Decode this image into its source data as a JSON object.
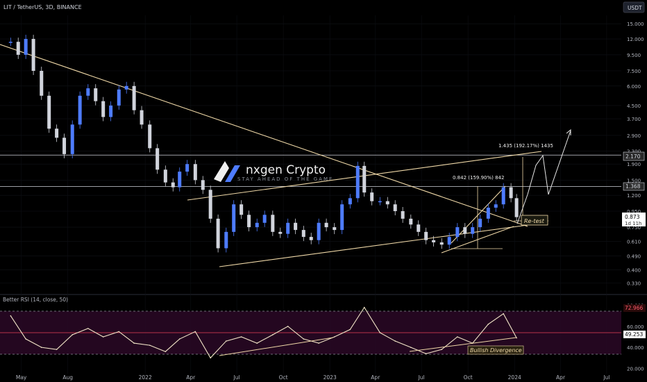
{
  "header": {
    "symbol": "LIT / TetherUS, 3D, BINANCE",
    "currency_button": "USDT"
  },
  "logo": {
    "name": "nxgen Crypto",
    "tagline": "STAY AHEAD OF THE GAME"
  },
  "annotations": {
    "target1": "0.842 (159.90%) 842",
    "target2": "1.435 (192.17%) 1435",
    "retest": "Re-test",
    "divergence": "Bullish Divergence"
  },
  "price_badges": {
    "level_high": "2.170",
    "level_mid": "1.368",
    "current": "0.873",
    "countdown": "1d 11h"
  },
  "rsi": {
    "label": "Better RSI (14, close, 50)",
    "last_value": "72.966",
    "current_value": "49.253"
  },
  "colors": {
    "background": "#000000",
    "candle_up": "#4e7cff",
    "candle_down": "#d1d4dc",
    "trendline": "#f0d9a8",
    "rsi_line": "#f3e6c8",
    "rsi_fill": "#3a0a35",
    "ob_line": "#b8334a"
  },
  "chart_data": [
    {
      "type": "line",
      "title": "LIT / TetherUS, 3D, BINANCE",
      "y_scale": "log",
      "y_ticks": [
        "15.000",
        "12.000",
        "9.500",
        "7.500",
        "6.000",
        "4.500",
        "3.700",
        "2.900",
        "2.300",
        "1.900",
        "1.500",
        "1.200",
        "0.950",
        "0.750",
        "0.610",
        "0.490",
        "0.400",
        "0.330"
      ],
      "x_ticks": [
        "May",
        "Aug",
        "2022",
        "Apr",
        "Jul",
        "Oct",
        "2023",
        "Apr",
        "Jul",
        "Oct",
        "2024",
        "Apr",
        "Jul"
      ],
      "ylim": [
        0.29,
        17
      ],
      "horizontal_levels": [
        2.17,
        1.368
      ],
      "series": [
        {
          "x": [
            "2021-04-10",
            "2021-04-25",
            "2021-05-10",
            "2021-05-25",
            "2021-06-10",
            "2021-06-25",
            "2021-07-10",
            "2021-07-25",
            "2021-08-10",
            "2021-08-25",
            "2021-09-10",
            "2021-09-25",
            "2021-10-10",
            "2021-10-25",
            "2021-11-10",
            "2021-11-25",
            "2021-12-10",
            "2021-12-25",
            "2022-01-10",
            "2022-01-25",
            "2022-02-10",
            "2022-02-25",
            "2022-03-10",
            "2022-03-25",
            "2022-04-10",
            "2022-04-25",
            "2022-05-10",
            "2022-05-25",
            "2022-06-10",
            "2022-06-25",
            "2022-07-10",
            "2022-07-25",
            "2022-08-10",
            "2022-08-25",
            "2022-09-10",
            "2022-09-25",
            "2022-10-10",
            "2022-10-25",
            "2022-11-10",
            "2022-11-25",
            "2022-12-10",
            "2022-12-25",
            "2023-01-10",
            "2023-01-25",
            "2023-02-10",
            "2023-02-25",
            "2023-03-10",
            "2023-03-25",
            "2023-04-10",
            "2023-04-25",
            "2023-05-10",
            "2023-05-25",
            "2023-06-10",
            "2023-06-25",
            "2023-07-10",
            "2023-07-25",
            "2023-08-10",
            "2023-08-25",
            "2023-09-10",
            "2023-09-25",
            "2023-10-10",
            "2023-10-25",
            "2023-11-10",
            "2023-11-25",
            "2023-12-10",
            "2023-12-25",
            "2024-01-05"
          ],
          "y": [
            11.5,
            9.5,
            12,
            7.5,
            5.2,
            3.2,
            2.8,
            2.2,
            3.4,
            5.2,
            5.8,
            4.8,
            3.8,
            4.5,
            5.7,
            6.0,
            4.2,
            3.4,
            2.4,
            1.75,
            1.45,
            1.35,
            1.7,
            1.9,
            1.5,
            1.3,
            0.85,
            0.55,
            0.7,
            1.05,
            0.9,
            0.75,
            0.8,
            0.9,
            0.7,
            0.68,
            0.8,
            0.72,
            0.65,
            0.62,
            0.8,
            0.75,
            0.72,
            1.05,
            1.15,
            1.85,
            1.25,
            1.1,
            1.1,
            1.05,
            0.95,
            0.85,
            0.78,
            0.7,
            0.62,
            0.6,
            0.58,
            0.65,
            0.75,
            0.68,
            0.75,
            0.85,
            1.0,
            1.05,
            1.35,
            1.15,
            0.87
          ]
        }
      ]
    },
    {
      "type": "line",
      "title": "Better RSI (14, close, 50)",
      "y_ticks": [
        "80.000",
        "60.000",
        "40.000",
        "20.000"
      ],
      "ylim": [
        15,
        85
      ],
      "series": [
        {
          "x": [
            "2021-04-10",
            "2021-05-10",
            "2021-06-10",
            "2021-07-10",
            "2021-08-10",
            "2021-09-10",
            "2021-10-10",
            "2021-11-10",
            "2021-12-10",
            "2022-01-10",
            "2022-02-10",
            "2022-03-10",
            "2022-04-10",
            "2022-05-10",
            "2022-06-10",
            "2022-07-10",
            "2022-08-10",
            "2022-09-10",
            "2022-10-10",
            "2022-11-10",
            "2022-12-10",
            "2023-01-10",
            "2023-02-10",
            "2023-03-10",
            "2023-04-10",
            "2023-05-10",
            "2023-06-10",
            "2023-07-10",
            "2023-08-10",
            "2023-09-10",
            "2023-10-10",
            "2023-11-10",
            "2023-12-10",
            "2024-01-05"
          ],
          "y": [
            70,
            48,
            40,
            38,
            52,
            58,
            50,
            55,
            44,
            42,
            36,
            48,
            55,
            30,
            46,
            50,
            44,
            52,
            60,
            48,
            44,
            50,
            57,
            78,
            54,
            46,
            40,
            34,
            38,
            50,
            44,
            62,
            72,
            49
          ]
        }
      ]
    }
  ]
}
